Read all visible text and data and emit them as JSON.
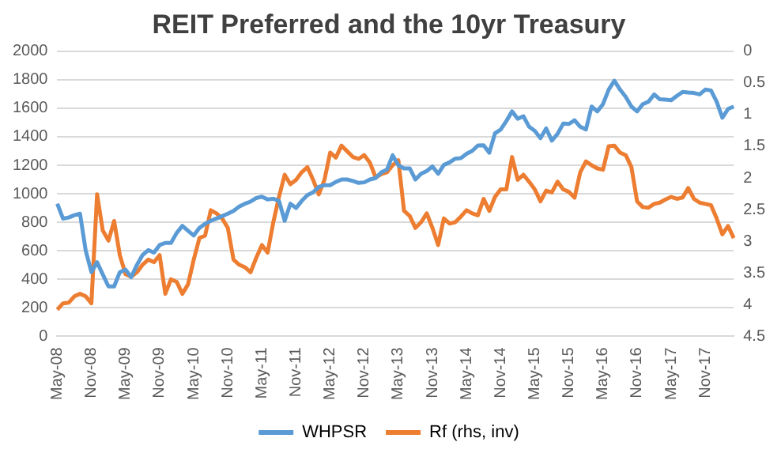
{
  "chart_data": {
    "type": "line",
    "title": "REIT Preferred and the 10yr Treasury",
    "categories": [
      "May-08",
      null,
      null,
      null,
      null,
      null,
      "Nov-08",
      null,
      null,
      null,
      null,
      null,
      "May-09",
      null,
      null,
      null,
      null,
      null,
      "Nov-09",
      null,
      null,
      null,
      null,
      null,
      "May-10",
      null,
      null,
      null,
      null,
      null,
      "Nov-10",
      null,
      null,
      null,
      null,
      null,
      "May-11",
      null,
      null,
      null,
      null,
      null,
      "Nov-11",
      null,
      null,
      null,
      null,
      null,
      "May-12",
      null,
      null,
      null,
      null,
      null,
      "Nov-12",
      null,
      null,
      null,
      null,
      null,
      "May-13",
      null,
      null,
      null,
      null,
      null,
      "Nov-13",
      null,
      null,
      null,
      null,
      null,
      "May-14",
      null,
      null,
      null,
      null,
      null,
      "Nov-14",
      null,
      null,
      null,
      null,
      null,
      "May-15",
      null,
      null,
      null,
      null,
      null,
      "Nov-15",
      null,
      null,
      null,
      null,
      null,
      "May-16",
      null,
      null,
      null,
      null,
      null,
      "Nov-16",
      null,
      null,
      null,
      null,
      null,
      "May-17",
      null,
      null,
      null,
      null,
      null,
      "Nov-17",
      null,
      null,
      null,
      null,
      null
    ],
    "series": [
      {
        "name": "WHPSR",
        "color": "#5b9bd5",
        "values": [
          930,
          826,
          833,
          850,
          860,
          600,
          450,
          520,
          434,
          350,
          350,
          450,
          468,
          415,
          500,
          570,
          605,
          587,
          640,
          655,
          655,
          725,
          775,
          740,
          707,
          760,
          790,
          810,
          826,
          843,
          860,
          880,
          910,
          930,
          945,
          970,
          980,
          960,
          965,
          950,
          810,
          930,
          900,
          950,
          990,
          1010,
          1048,
          1060,
          1060,
          1083,
          1100,
          1100,
          1090,
          1076,
          1080,
          1100,
          1110,
          1150,
          1170,
          1270,
          1200,
          1178,
          1178,
          1100,
          1140,
          1160,
          1192,
          1140,
          1202,
          1220,
          1246,
          1250,
          1280,
          1301,
          1339,
          1340,
          1288,
          1424,
          1450,
          1510,
          1578,
          1526,
          1544,
          1470,
          1441,
          1390,
          1458,
          1373,
          1420,
          1492,
          1490,
          1516,
          1470,
          1451,
          1612,
          1578,
          1629,
          1731,
          1793,
          1731,
          1680,
          1612,
          1578,
          1629,
          1646,
          1697,
          1663,
          1660,
          1656,
          1687,
          1714,
          1710,
          1707,
          1697,
          1731,
          1725,
          1646,
          1533,
          1595,
          1612
        ]
      },
      {
        "name": "Rf (rhs, inv)",
        "color": "#ed7d31",
        "axis": "y2",
        "values": [
          4.08,
          3.98,
          3.97,
          3.87,
          3.83,
          3.87,
          3.98,
          2.26,
          2.83,
          2.99,
          2.68,
          3.22,
          3.52,
          3.56,
          3.49,
          3.37,
          3.29,
          3.33,
          3.22,
          3.83,
          3.6,
          3.64,
          3.83,
          3.68,
          3.29,
          2.95,
          2.91,
          2.51,
          2.56,
          2.64,
          2.79,
          3.29,
          3.37,
          3.41,
          3.49,
          3.26,
          3.06,
          3.18,
          2.7,
          2.3,
          1.95,
          2.1,
          2.03,
          1.91,
          1.83,
          2.03,
          2.26,
          2.03,
          1.6,
          1.68,
          1.49,
          1.58,
          1.67,
          1.7,
          1.64,
          1.76,
          1.99,
          1.94,
          1.91,
          1.8,
          1.72,
          2.52,
          2.6,
          2.79,
          2.7,
          2.56,
          2.79,
          3.06,
          2.64,
          2.72,
          2.7,
          2.61,
          2.51,
          2.56,
          2.59,
          2.33,
          2.52,
          2.3,
          2.18,
          2.18,
          1.67,
          2.03,
          1.95,
          2.06,
          2.18,
          2.37,
          2.2,
          2.23,
          2.06,
          2.18,
          2.22,
          2.31,
          1.91,
          1.74,
          1.8,
          1.85,
          1.87,
          1.5,
          1.49,
          1.6,
          1.64,
          1.83,
          2.37,
          2.46,
          2.47,
          2.41,
          2.39,
          2.34,
          2.3,
          2.33,
          2.31,
          2.16,
          2.33,
          2.39,
          2.41,
          2.43,
          2.64,
          2.89,
          2.76,
          2.95
        ]
      }
    ],
    "ylim": [
      0,
      2000
    ],
    "yticks": [
      0,
      200,
      400,
      600,
      800,
      1000,
      1200,
      1400,
      1600,
      1800,
      2000
    ],
    "y2lim": [
      4.5,
      0
    ],
    "y2ticks": [
      0,
      0.5,
      1,
      1.5,
      2,
      2.5,
      3,
      3.5,
      4,
      4.5
    ],
    "grid": "y",
    "legend": "bottom",
    "marker": "none",
    "line_style": "solid"
  }
}
